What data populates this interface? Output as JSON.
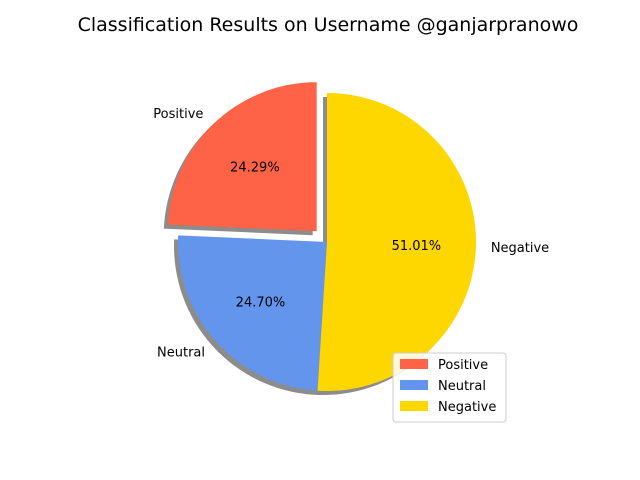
{
  "chart_data": {
    "type": "pie",
    "title": "Classification Results on Username @ganjarpranowo",
    "categories": [
      "Positive",
      "Neutral",
      "Negative"
    ],
    "values": [
      24.29,
      24.7,
      51.01
    ],
    "percent_labels": [
      "24.29%",
      "24.70%",
      "51.01%"
    ],
    "colors": [
      "#FF6347",
      "#6495ED",
      "#FFD700"
    ],
    "explode": [
      0.1,
      0,
      0
    ],
    "shadow": true,
    "start_angle_deg": 90,
    "direction": "counterclockwise",
    "legend": {
      "placement": "lower-right",
      "entries": [
        "Positive",
        "Neutral",
        "Negative"
      ]
    }
  }
}
